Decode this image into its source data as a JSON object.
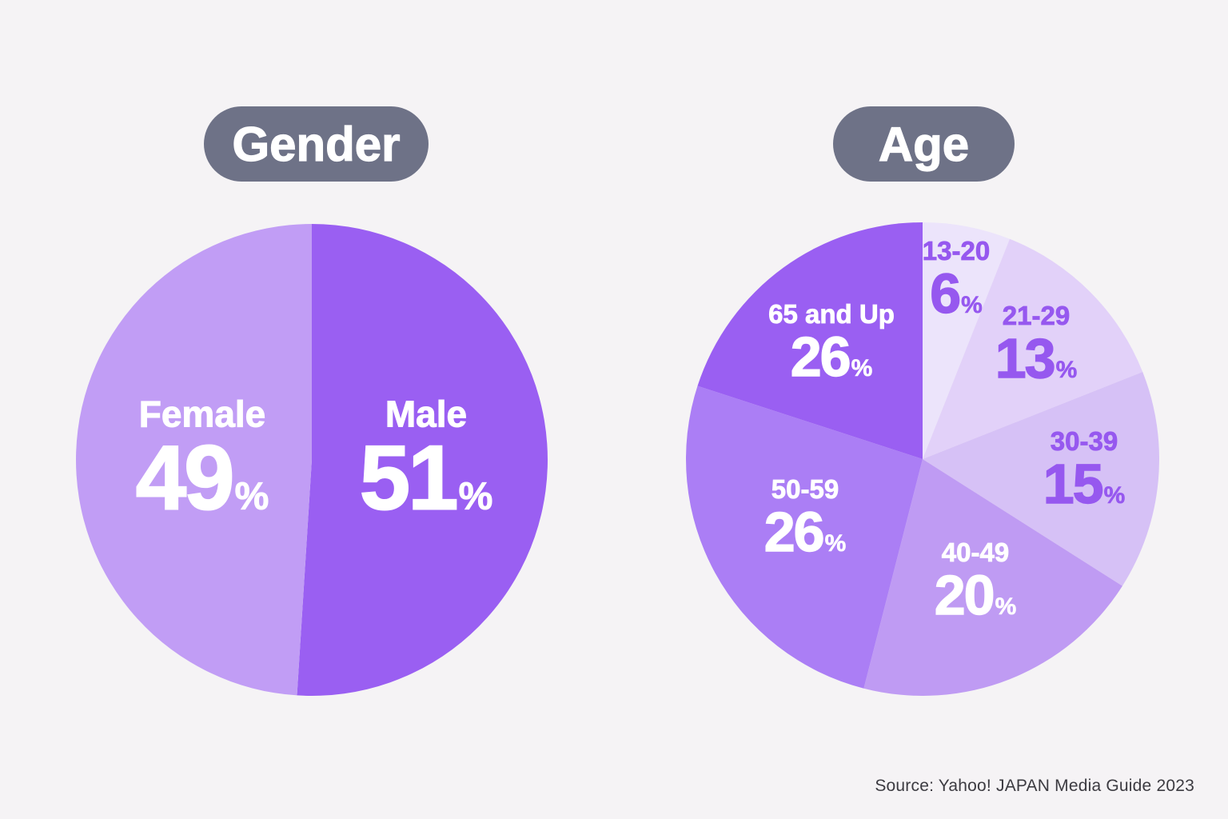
{
  "page": {
    "background_color": "#f5f3f5",
    "source_note": "Source: Yahoo! JAPAN Media Guide 2023",
    "source_note_color": "#3c3b41"
  },
  "percent_symbol": "%",
  "chart_data": [
    {
      "type": "pie",
      "title": "Gender",
      "pill_color": "#6e7287",
      "pill_text_color": "#ffffff",
      "legend_position": "none",
      "labels_position": "inside",
      "start_angle_deg": 0,
      "direction": "clockwise",
      "segments": [
        {
          "label": "Male",
          "value": 51,
          "color": "#9a5ff2",
          "label_color": "#ffffff"
        },
        {
          "label": "Female",
          "value": 49,
          "color": "#c19df5",
          "label_color": "#ffffff"
        }
      ]
    },
    {
      "type": "pie",
      "title": "Age",
      "pill_color": "#6e7287",
      "pill_text_color": "#ffffff",
      "legend_position": "none",
      "labels_position": "inside",
      "start_angle_deg": 0,
      "direction": "clockwise",
      "segments": [
        {
          "label": "13-20",
          "value": 6,
          "color": "#ece4fb",
          "label_color": "#9658ef"
        },
        {
          "label": "21-29",
          "value": 13,
          "color": "#e2d1f9",
          "label_color": "#9658ef"
        },
        {
          "label": "30-39",
          "value": 15,
          "color": "#d6c1f6",
          "label_color": "#9658ef"
        },
        {
          "label": "40-49",
          "value": 20,
          "color": "#bf9bf3",
          "label_color": "#ffffff"
        },
        {
          "label": "50-59",
          "value": 26,
          "color": "#ab7ef5",
          "label_color": "#ffffff"
        },
        {
          "label": "65 and Up",
          "value": 26,
          "color": "#9a5ff2",
          "label_color": "#ffffff"
        }
      ]
    }
  ]
}
